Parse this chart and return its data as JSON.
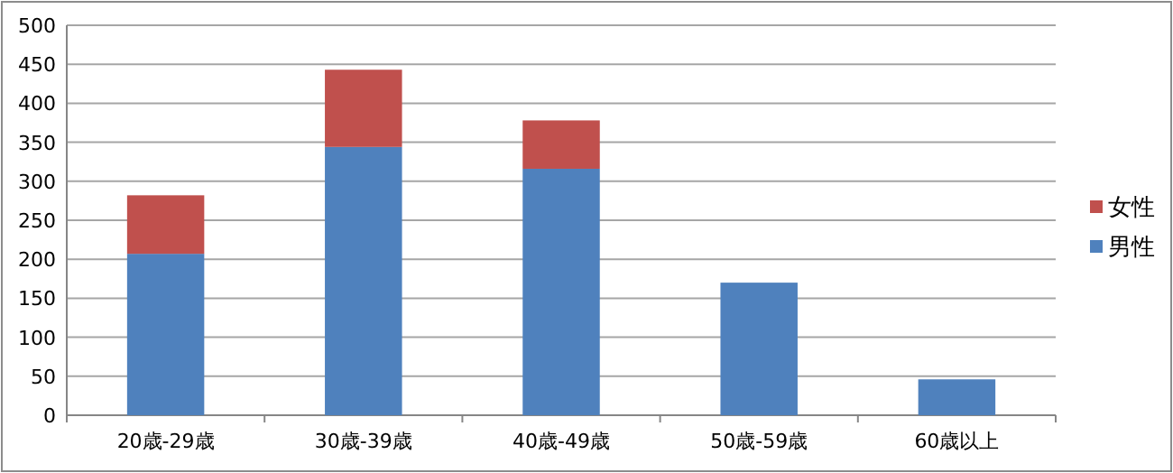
{
  "chart_data": {
    "type": "bar",
    "stacked": true,
    "categories": [
      "20歳-29歳",
      "30歳-39歳",
      "40歳-49歳",
      "50歳-59歳",
      "60歳以上"
    ],
    "series": [
      {
        "name": "男性",
        "color": "#4f81bd",
        "values": [
          207,
          344,
          316,
          170,
          46
        ]
      },
      {
        "name": "女性",
        "color": "#c0504d",
        "values": [
          75,
          99,
          62,
          0,
          0
        ]
      }
    ],
    "ylim": [
      0,
      500
    ],
    "yticks": [
      0,
      50,
      100,
      150,
      200,
      250,
      300,
      350,
      400,
      450,
      500
    ],
    "grid": "y",
    "legend": "right"
  }
}
